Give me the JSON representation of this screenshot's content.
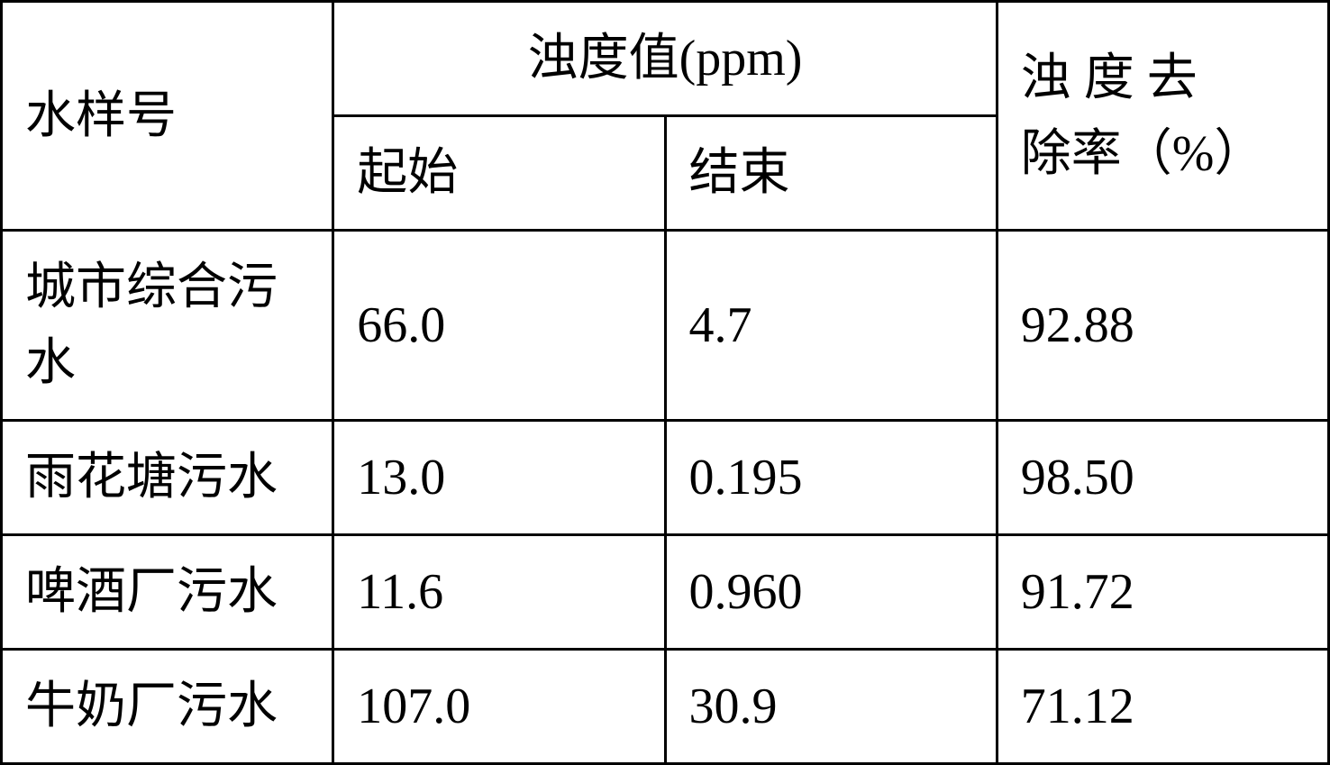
{
  "table": {
    "headers": {
      "col1": "水样号",
      "col2_span": "浊度值(ppm)",
      "col2_sub1": "起始",
      "col2_sub2": "结束",
      "col4_line1": "浊 度 去",
      "col4_line2": "除率（%）"
    },
    "rows": [
      {
        "name": "城市综合污水",
        "start": "66.0",
        "end": "4.7",
        "removal": "92.88"
      },
      {
        "name": "雨花塘污水",
        "start": "13.0",
        "end": "0.195",
        "removal": "98.50"
      },
      {
        "name": "啤酒厂污水",
        "start": "11.6",
        "end": "0.960",
        "removal": "91.72"
      },
      {
        "name": "牛奶厂污水",
        "start": "107.0",
        "end": "30.9",
        "removal": "71.12"
      }
    ],
    "styling": {
      "border_color": "#000000",
      "border_width": 3,
      "background_color": "#ffffff",
      "text_color": "#000000",
      "font_size": 56,
      "font_family": "SimSun"
    }
  }
}
